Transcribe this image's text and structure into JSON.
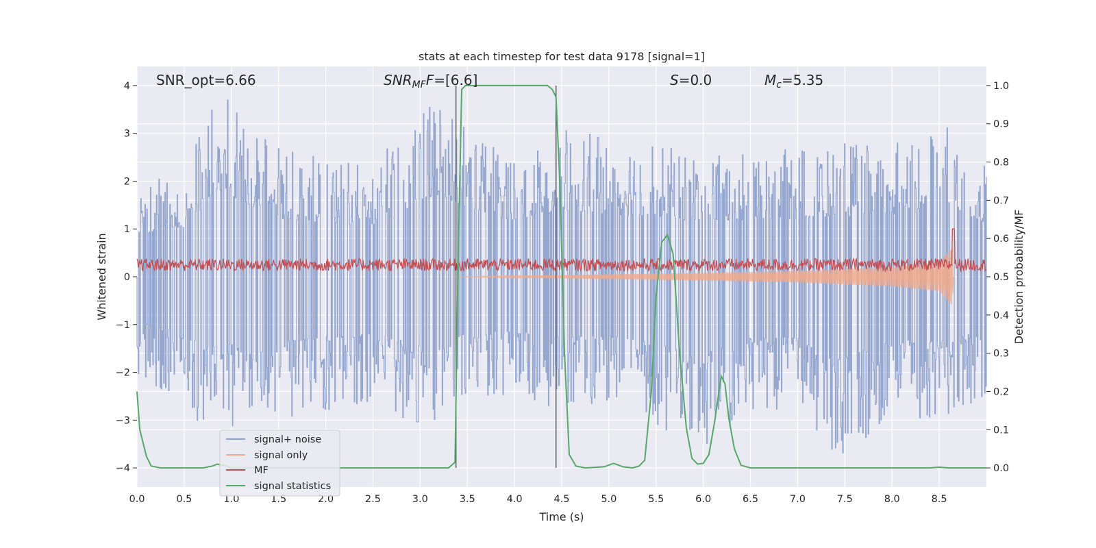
{
  "chart_data": {
    "type": "line",
    "title": "stats at each timestep for test data 9178 [signal=1]",
    "xlabel": "Time (s)",
    "ylabel": "Whitened strain",
    "y2label": "Detection probability/MF",
    "xlim": [
      0,
      9.0
    ],
    "ylim": [
      -4.4,
      4.4
    ],
    "y2lim": [
      -0.05,
      1.05
    ],
    "xticks": [
      0.0,
      0.5,
      1.0,
      1.5,
      2.0,
      2.5,
      3.0,
      3.5,
      4.0,
      4.5,
      5.0,
      5.5,
      6.0,
      6.5,
      7.0,
      7.5,
      8.0,
      8.5
    ],
    "xtick_labels": [
      "0.0",
      "0.5",
      "1.0",
      "1.5",
      "2.0",
      "2.5",
      "3.0",
      "3.5",
      "4.0",
      "4.5",
      "5.0",
      "5.5",
      "6.0",
      "6.5",
      "7.0",
      "7.5",
      "8.0",
      "8.5"
    ],
    "yticks": [
      -4,
      -3,
      -2,
      -1,
      0,
      1,
      2,
      3,
      4
    ],
    "ytick_labels": [
      "−4",
      "−3",
      "−2",
      "−1",
      "0",
      "1",
      "2",
      "3",
      "4"
    ],
    "y2ticks": [
      0.0,
      0.1,
      0.2,
      0.3,
      0.4,
      0.5,
      0.6,
      0.7,
      0.8,
      0.9,
      1.0
    ],
    "y2tick_labels": [
      "0.0",
      "0.1",
      "0.2",
      "0.3",
      "0.4",
      "0.5",
      "0.6",
      "0.7",
      "0.8",
      "0.9",
      "1.0"
    ],
    "grid": true,
    "legend_placement": "lower-left",
    "legend": [
      {
        "label": "signal+ noise",
        "color": "#8da0cb"
      },
      {
        "label": "signal only",
        "color": "#f2a98a"
      },
      {
        "label": "MF",
        "color": "#c44e52"
      },
      {
        "label": "signal statistics",
        "color": "#55a868"
      }
    ],
    "annotations": {
      "snr_opt": "SNR_opt=6.66",
      "snr_mf_base": "SNR",
      "snr_mf_sub": "MF",
      "snr_mf_tail": "=[6.6]",
      "s_label": "S",
      "s_value": "=0.0",
      "mc_label": "M",
      "mc_sub": "c",
      "mc_value": "=5.35"
    },
    "vertical_lines_x": [
      3.38,
      4.44
    ],
    "series": [
      {
        "name": "signal+ noise",
        "axis": "left",
        "color": "#8da0cb",
        "upper_envelope": [
          [
            0.0,
            1.9
          ],
          [
            0.5,
            2.3
          ],
          [
            0.86,
            4.0
          ],
          [
            1.5,
            2.7
          ],
          [
            2.0,
            2.5
          ],
          [
            2.5,
            2.4
          ],
          [
            3.2,
            3.8
          ],
          [
            3.5,
            3.2
          ],
          [
            4.0,
            2.6
          ],
          [
            4.5,
            3.1
          ],
          [
            5.0,
            2.9
          ],
          [
            5.5,
            2.8
          ],
          [
            6.0,
            2.5
          ],
          [
            6.5,
            2.6
          ],
          [
            7.0,
            2.7
          ],
          [
            7.5,
            2.8
          ],
          [
            8.0,
            2.8
          ],
          [
            8.6,
            3.2
          ],
          [
            9.0,
            2.5
          ]
        ],
        "lower_envelope": [
          [
            0.0,
            -2.1
          ],
          [
            0.5,
            -2.6
          ],
          [
            0.7,
            -3.2
          ],
          [
            1.5,
            -3.0
          ],
          [
            2.0,
            -2.8
          ],
          [
            2.5,
            -2.6
          ],
          [
            3.1,
            -3.3
          ],
          [
            3.5,
            -2.6
          ],
          [
            4.0,
            -2.5
          ],
          [
            4.5,
            -2.8
          ],
          [
            5.0,
            -2.7
          ],
          [
            5.5,
            -3.1
          ],
          [
            5.93,
            -3.7
          ],
          [
            6.5,
            -2.8
          ],
          [
            7.0,
            -2.8
          ],
          [
            7.4,
            -3.9
          ],
          [
            8.0,
            -2.9
          ],
          [
            8.5,
            -3.0
          ],
          [
            9.0,
            -2.5
          ]
        ]
      },
      {
        "name": "signal only",
        "axis": "left",
        "color": "#f2a98a",
        "envelope": [
          [
            3.4,
            0.0
          ],
          [
            4.0,
            0.02
          ],
          [
            5.0,
            0.05
          ],
          [
            6.0,
            0.08
          ],
          [
            7.0,
            0.12
          ],
          [
            8.0,
            0.2
          ],
          [
            8.5,
            0.3
          ],
          [
            8.64,
            0.6
          ],
          [
            8.65,
            0.0
          ]
        ]
      },
      {
        "name": "MF",
        "axis": "left",
        "color": "#c44e52",
        "baseline": 0.25,
        "amplitude": 0.13,
        "peak": [
          8.65,
          1.0
        ]
      },
      {
        "name": "signal statistics",
        "axis": "right",
        "color": "#55a868",
        "points": [
          [
            0.0,
            0.2
          ],
          [
            0.03,
            0.1
          ],
          [
            0.1,
            0.03
          ],
          [
            0.15,
            0.005
          ],
          [
            0.25,
            0.0
          ],
          [
            0.7,
            0.0
          ],
          [
            0.8,
            0.005
          ],
          [
            0.85,
            0.01
          ],
          [
            0.95,
            0.005
          ],
          [
            1.0,
            0.0
          ],
          [
            3.3,
            0.0
          ],
          [
            3.37,
            0.015
          ],
          [
            3.4,
            0.5
          ],
          [
            3.44,
            0.99
          ],
          [
            3.48,
            1.0
          ],
          [
            4.35,
            1.0
          ],
          [
            4.4,
            0.99
          ],
          [
            4.44,
            0.97
          ],
          [
            4.48,
            0.75
          ],
          [
            4.53,
            0.3
          ],
          [
            4.58,
            0.035
          ],
          [
            4.65,
            0.005
          ],
          [
            4.75,
            0.0
          ],
          [
            4.95,
            0.003
          ],
          [
            5.05,
            0.012
          ],
          [
            5.15,
            0.003
          ],
          [
            5.25,
            0.0
          ],
          [
            5.32,
            0.005
          ],
          [
            5.38,
            0.02
          ],
          [
            5.45,
            0.2
          ],
          [
            5.5,
            0.45
          ],
          [
            5.56,
            0.59
          ],
          [
            5.62,
            0.61
          ],
          [
            5.68,
            0.56
          ],
          [
            5.75,
            0.3
          ],
          [
            5.82,
            0.105
          ],
          [
            5.88,
            0.025
          ],
          [
            5.94,
            0.01
          ],
          [
            6.0,
            0.012
          ],
          [
            6.06,
            0.035
          ],
          [
            6.12,
            0.12
          ],
          [
            6.19,
            0.24
          ],
          [
            6.23,
            0.22
          ],
          [
            6.27,
            0.13
          ],
          [
            6.33,
            0.05
          ],
          [
            6.4,
            0.007
          ],
          [
            6.5,
            0.0
          ],
          [
            8.4,
            0.0
          ],
          [
            8.5,
            0.002
          ],
          [
            8.6,
            0.0
          ],
          [
            9.0,
            0.0
          ]
        ]
      }
    ]
  }
}
